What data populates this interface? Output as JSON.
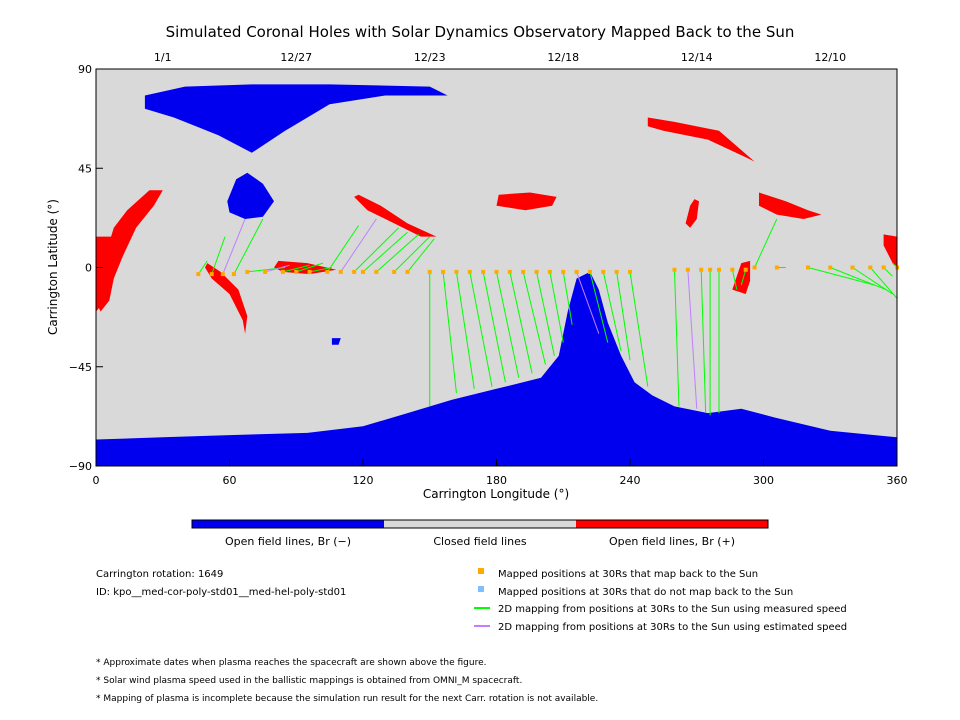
{
  "chart_data": {
    "type": "scatter",
    "title": "Simulated Coronal Holes with Solar Dynamics Observatory Mapped Back to the Sun",
    "xlabel": "Carrington Longitude (°)",
    "ylabel": "Carrington Latitude (°)",
    "xlim": [
      0,
      360
    ],
    "ylim": [
      -90,
      90
    ],
    "x_ticks": [
      "0",
      "60",
      "120",
      "180",
      "240",
      "300",
      "360"
    ],
    "y_ticks": [
      "90",
      "45",
      "0",
      "−45",
      "−90"
    ],
    "top_axis_dates": [
      {
        "label": "1/1",
        "lon": 30
      },
      {
        "label": "12/27",
        "lon": 90
      },
      {
        "label": "12/23",
        "lon": 150
      },
      {
        "label": "12/18",
        "lon": 210
      },
      {
        "label": "12/14",
        "lon": 270
      },
      {
        "label": "12/10",
        "lon": 330
      }
    ],
    "colors": {
      "closed": "#d9d9d9",
      "open_negative": "#0000ee",
      "open_positive": "#ff0000",
      "mapped_point": "#ffaa00",
      "unmapped_point": "#7fbfff",
      "measured_line": "#00ff00",
      "estimated_line": "#bf7fff"
    },
    "regions": [
      {
        "polarity": "negative",
        "points": [
          [
            0,
            -78
          ],
          [
            30,
            -77
          ],
          [
            60,
            -76
          ],
          [
            95,
            -75
          ],
          [
            120,
            -72
          ],
          [
            140,
            -66
          ],
          [
            160,
            -60
          ],
          [
            180,
            -55
          ],
          [
            200,
            -50
          ],
          [
            208,
            -40
          ],
          [
            212,
            -20
          ],
          [
            216,
            -5
          ],
          [
            222,
            -2
          ],
          [
            226,
            -10
          ],
          [
            230,
            -25
          ],
          [
            236,
            -40
          ],
          [
            242,
            -52
          ],
          [
            250,
            -58
          ],
          [
            260,
            -63
          ],
          [
            275,
            -66
          ],
          [
            290,
            -64
          ],
          [
            305,
            -68
          ],
          [
            330,
            -74
          ],
          [
            360,
            -77
          ],
          [
            360,
            -90
          ],
          [
            0,
            -90
          ]
        ]
      },
      {
        "polarity": "negative",
        "points": [
          [
            22,
            78
          ],
          [
            40,
            82
          ],
          [
            70,
            83
          ],
          [
            105,
            83
          ],
          [
            150,
            82
          ],
          [
            158,
            78
          ],
          [
            130,
            78
          ],
          [
            105,
            74
          ],
          [
            85,
            62
          ],
          [
            70,
            52
          ],
          [
            55,
            60
          ],
          [
            35,
            68
          ],
          [
            22,
            72
          ]
        ]
      },
      {
        "polarity": "negative",
        "points": [
          [
            59,
            30
          ],
          [
            63,
            40
          ],
          [
            68,
            43
          ],
          [
            75,
            38
          ],
          [
            80,
            30
          ],
          [
            75,
            23
          ],
          [
            67,
            22
          ],
          [
            60,
            25
          ]
        ]
      },
      {
        "polarity": "negative",
        "points": [
          [
            106,
            -32
          ],
          [
            110,
            -32
          ],
          [
            109,
            -35
          ],
          [
            106,
            -35
          ]
        ]
      },
      {
        "polarity": "positive",
        "points": [
          [
            248,
            68
          ],
          [
            260,
            66
          ],
          [
            280,
            62
          ],
          [
            296,
            48
          ],
          [
            292,
            50
          ],
          [
            275,
            58
          ],
          [
            255,
            62
          ],
          [
            248,
            64
          ]
        ]
      },
      {
        "polarity": "positive",
        "points": [
          [
            30,
            35
          ],
          [
            24,
            35
          ],
          [
            14,
            26
          ],
          [
            8,
            18
          ],
          [
            4,
            5
          ],
          [
            2,
            -2
          ],
          [
            0,
            -10
          ],
          [
            0,
            -15
          ],
          [
            2,
            -20
          ],
          [
            6,
            -15
          ],
          [
            8,
            -5
          ],
          [
            12,
            5
          ],
          [
            18,
            18
          ],
          [
            26,
            28
          ]
        ]
      },
      {
        "polarity": "positive",
        "points": [
          [
            0,
            14
          ],
          [
            8,
            14
          ],
          [
            10,
            5
          ],
          [
            8,
            -5
          ],
          [
            4,
            -15
          ],
          [
            0,
            -20
          ]
        ]
      },
      {
        "polarity": "positive",
        "points": [
          [
            118,
            33
          ],
          [
            128,
            28
          ],
          [
            140,
            20
          ],
          [
            153,
            14
          ],
          [
            146,
            14
          ],
          [
            134,
            20
          ],
          [
            122,
            26
          ],
          [
            116,
            32
          ]
        ]
      },
      {
        "polarity": "positive",
        "points": [
          [
            181,
            33
          ],
          [
            195,
            34
          ],
          [
            207,
            32
          ],
          [
            205,
            28
          ],
          [
            193,
            26
          ],
          [
            180,
            28
          ]
        ]
      },
      {
        "polarity": "positive",
        "points": [
          [
            298,
            34
          ],
          [
            310,
            30
          ],
          [
            320,
            26
          ],
          [
            326,
            24
          ],
          [
            318,
            22
          ],
          [
            306,
            24
          ],
          [
            298,
            28
          ]
        ]
      },
      {
        "polarity": "positive",
        "points": [
          [
            354,
            15
          ],
          [
            360,
            14
          ],
          [
            360,
            0
          ],
          [
            358,
            2
          ],
          [
            354,
            10
          ]
        ]
      },
      {
        "polarity": "positive",
        "points": [
          [
            269,
            31
          ],
          [
            271,
            30
          ],
          [
            270,
            22
          ],
          [
            267,
            18
          ],
          [
            265,
            20
          ],
          [
            267,
            28
          ]
        ]
      },
      {
        "polarity": "positive",
        "points": [
          [
            50,
            2
          ],
          [
            56,
            -2
          ],
          [
            64,
            -10
          ],
          [
            68,
            -22
          ],
          [
            67,
            -30
          ],
          [
            66,
            -24
          ],
          [
            60,
            -12
          ],
          [
            52,
            -5
          ],
          [
            49,
            0
          ]
        ]
      },
      {
        "polarity": "positive",
        "points": [
          [
            82,
            3
          ],
          [
            95,
            2
          ],
          [
            108,
            -1
          ],
          [
            96,
            -3
          ],
          [
            84,
            -2
          ],
          [
            80,
            0
          ]
        ]
      },
      {
        "polarity": "positive",
        "points": [
          [
            286,
            -10
          ],
          [
            292,
            -12
          ],
          [
            294,
            -6
          ],
          [
            294,
            3
          ],
          [
            290,
            2
          ],
          [
            288,
            -4
          ]
        ]
      }
    ],
    "mapped_positions": [
      {
        "lon": 46,
        "lat": -3,
        "sun_lon": 50,
        "sun_lat": 3,
        "speed": "measured"
      },
      {
        "lon": 52,
        "lat": -3,
        "sun_lon": 58,
        "sun_lat": 14,
        "speed": "measured"
      },
      {
        "lon": 57,
        "lat": -3,
        "sun_lon": 67,
        "sun_lat": 22,
        "speed": "estimated"
      },
      {
        "lon": 62,
        "lat": -3,
        "sun_lon": 75,
        "sun_lat": 22,
        "speed": "measured"
      },
      {
        "lon": 68,
        "lat": -2,
        "sun_lon": 85,
        "sun_lat": 0,
        "speed": "measured"
      },
      {
        "lon": 76,
        "lat": -2,
        "sun_lon": 87,
        "sun_lat": 1,
        "speed": "estimated"
      },
      {
        "lon": 84,
        "lat": -2,
        "sun_lon": 96,
        "sun_lat": 1,
        "speed": "measured"
      },
      {
        "lon": 90,
        "lat": -2,
        "sun_lon": 102,
        "sun_lat": 2,
        "speed": "measured"
      },
      {
        "lon": 96,
        "lat": -2,
        "sun_lon": 106,
        "sun_lat": 0,
        "speed": "measured"
      },
      {
        "lon": 104,
        "lat": -2,
        "sun_lon": 118,
        "sun_lat": 19,
        "speed": "measured"
      },
      {
        "lon": 110,
        "lat": -2,
        "sun_lon": 126,
        "sun_lat": 22,
        "speed": "estimated"
      },
      {
        "lon": 116,
        "lat": -2,
        "sun_lon": 136,
        "sun_lat": 18,
        "speed": "measured"
      },
      {
        "lon": 120,
        "lat": -2,
        "sun_lon": 140,
        "sun_lat": 16,
        "speed": "measured"
      },
      {
        "lon": 126,
        "lat": -2,
        "sun_lon": 145,
        "sun_lat": 15,
        "speed": "measured"
      },
      {
        "lon": 134,
        "lat": -2,
        "sun_lon": 150,
        "sun_lat": 14,
        "speed": "measured"
      },
      {
        "lon": 140,
        "lat": -2,
        "sun_lon": 152,
        "sun_lat": 13,
        "speed": "measured"
      },
      {
        "lon": 150,
        "lat": -2,
        "sun_lon": 150,
        "sun_lat": -63,
        "speed": "measured"
      },
      {
        "lon": 156,
        "lat": -2,
        "sun_lon": 162,
        "sun_lat": -57,
        "speed": "measured"
      },
      {
        "lon": 162,
        "lat": -2,
        "sun_lon": 170,
        "sun_lat": -55,
        "speed": "measured"
      },
      {
        "lon": 168,
        "lat": -2,
        "sun_lon": 178,
        "sun_lat": -54,
        "speed": "measured"
      },
      {
        "lon": 174,
        "lat": -2,
        "sun_lon": 184,
        "sun_lat": -52,
        "speed": "measured"
      },
      {
        "lon": 180,
        "lat": -2,
        "sun_lon": 190,
        "sun_lat": -50,
        "speed": "measured"
      },
      {
        "lon": 186,
        "lat": -2,
        "sun_lon": 196,
        "sun_lat": -48,
        "speed": "measured"
      },
      {
        "lon": 192,
        "lat": -2,
        "sun_lon": 202,
        "sun_lat": -44,
        "speed": "measured"
      },
      {
        "lon": 198,
        "lat": -2,
        "sun_lon": 206,
        "sun_lat": -40,
        "speed": "measured"
      },
      {
        "lon": 204,
        "lat": -2,
        "sun_lon": 210,
        "sun_lat": -34,
        "speed": "measured"
      },
      {
        "lon": 210,
        "lat": -2,
        "sun_lon": 214,
        "sun_lat": -26,
        "speed": "measured"
      },
      {
        "lon": 216,
        "lat": -2,
        "sun_lon": 226,
        "sun_lat": -30,
        "speed": "estimated"
      },
      {
        "lon": 222,
        "lat": -2,
        "sun_lon": 230,
        "sun_lat": -34,
        "speed": "measured"
      },
      {
        "lon": 228,
        "lat": -2,
        "sun_lon": 236,
        "sun_lat": -38,
        "speed": "measured"
      },
      {
        "lon": 234,
        "lat": -2,
        "sun_lon": 240,
        "sun_lat": -42,
        "speed": "measured"
      },
      {
        "lon": 240,
        "lat": -2,
        "sun_lon": 248,
        "sun_lat": -54,
        "speed": "measured"
      },
      {
        "lon": 260,
        "lat": -1,
        "sun_lon": 262,
        "sun_lat": -63,
        "speed": "measured"
      },
      {
        "lon": 266,
        "lat": -1,
        "sun_lon": 270,
        "sun_lat": -64,
        "speed": "estimated"
      },
      {
        "lon": 272,
        "lat": -1,
        "sun_lon": 274,
        "sun_lat": -66,
        "speed": "measured"
      },
      {
        "lon": 276,
        "lat": -1,
        "sun_lon": 276,
        "sun_lat": -67,
        "speed": "measured"
      },
      {
        "lon": 280,
        "lat": -1,
        "sun_lon": 280,
        "sun_lat": -66,
        "speed": "measured"
      },
      {
        "lon": 286,
        "lat": -1,
        "sun_lon": 288,
        "sun_lat": -10,
        "speed": "measured"
      },
      {
        "lon": 292,
        "lat": -1,
        "sun_lon": 290,
        "sun_lat": -8,
        "speed": "measured"
      },
      {
        "lon": 296,
        "lat": 0,
        "sun_lon": 306,
        "sun_lat": 22,
        "speed": "measured"
      },
      {
        "lon": 306,
        "lat": 0,
        "sun_lon": 310,
        "sun_lat": 0,
        "speed": "measured"
      },
      {
        "lon": 320,
        "lat": 0,
        "sun_lon": 350,
        "sun_lat": -8,
        "speed": "measured"
      },
      {
        "lon": 330,
        "lat": 0,
        "sun_lon": 355,
        "sun_lat": -10,
        "speed": "measured"
      },
      {
        "lon": 340,
        "lat": 0,
        "sun_lon": 358,
        "sun_lat": -12,
        "speed": "measured"
      },
      {
        "lon": 348,
        "lat": 0,
        "sun_lon": 360,
        "sun_lat": -14,
        "speed": "measured"
      },
      {
        "lon": 354,
        "lat": 0,
        "sun_lon": 358,
        "sun_lat": -4,
        "speed": "measured"
      },
      {
        "lon": 360,
        "lat": 0,
        "sun_lon": 358,
        "sun_lat": 2,
        "speed": "measured"
      }
    ],
    "colorbar": {
      "labels": [
        "Open field lines, Br (−)",
        "Closed field lines",
        "Open field lines, Br (+)"
      ]
    },
    "info": {
      "rotation": "Carrington rotation: 1649",
      "id": "ID: kpo__med-cor-poly-std01__med-hel-poly-std01"
    },
    "legend": [
      {
        "marker": "square",
        "color": "#ffaa00",
        "label": "Mapped positions at 30Rs that map back to the Sun"
      },
      {
        "marker": "square",
        "color": "#7fbfff",
        "label": "Mapped positions at 30Rs that do not map back to the Sun"
      },
      {
        "marker": "line",
        "color": "#00ff00",
        "label": "2D mapping from positions at 30Rs to the Sun using measured speed"
      },
      {
        "marker": "line",
        "color": "#bf7fff",
        "label": "2D mapping from positions at 30Rs to the Sun using estimated speed"
      }
    ],
    "notes": [
      "* Approximate dates when plasma reaches the spacecraft are shown above the figure.",
      "* Solar wind plasma speed used in the ballistic mappings is obtained from OMNI_M spacecraft.",
      "* Mapping of plasma is incomplete because the simulation run result for the next Carr. rotation is not available."
    ]
  }
}
